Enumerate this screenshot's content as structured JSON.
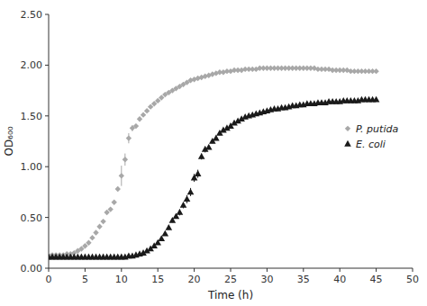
{
  "chart_data": {
    "type": "scatter",
    "xlabel": "Time (h)",
    "ylabel": "OD₆₀₀",
    "xlim": [
      0,
      50
    ],
    "ylim": [
      0,
      2.5
    ],
    "xticks": [
      0,
      5,
      10,
      15,
      20,
      25,
      30,
      35,
      40,
      45,
      50
    ],
    "yticks": [
      {
        "value": 0,
        "label": "0.00"
      },
      {
        "value": 0.5,
        "label": "0.50"
      },
      {
        "value": 1,
        "label": "1.00"
      },
      {
        "value": 1.5,
        "label": "1.50"
      },
      {
        "value": 2,
        "label": "2.00"
      },
      {
        "value": 2.5,
        "label": "2.50"
      }
    ],
    "grid": false,
    "legend": "right",
    "series": [
      {
        "name": "P. putida",
        "color": "#a8a8a8",
        "marker": "diamond",
        "x": [
          0.0,
          0.5,
          1.0,
          1.5,
          2.0,
          2.5,
          3.0,
          3.5,
          4.0,
          4.5,
          5.0,
          5.5,
          6.0,
          6.5,
          7.0,
          7.5,
          8.0,
          8.5,
          9.0,
          9.5,
          10.0,
          10.5,
          11.0,
          11.5,
          12.0,
          12.5,
          13.0,
          13.5,
          14.0,
          14.5,
          15.0,
          15.5,
          16.0,
          16.5,
          17.0,
          17.5,
          18.0,
          18.5,
          19.0,
          19.5,
          20.0,
          20.5,
          21.0,
          21.5,
          22.0,
          22.5,
          23.0,
          23.5,
          24.0,
          24.5,
          25.0,
          25.5,
          26.0,
          26.5,
          27.0,
          27.5,
          28.0,
          28.5,
          29.0,
          29.5,
          30.0,
          30.5,
          31.0,
          31.5,
          32.0,
          32.5,
          33.0,
          33.5,
          34.0,
          34.5,
          35.0,
          35.5,
          36.0,
          36.5,
          37.0,
          37.5,
          38.0,
          38.5,
          39.0,
          39.5,
          40.0,
          40.5,
          41.0,
          41.5,
          42.0,
          42.5,
          43.0,
          43.5,
          44.0,
          44.5,
          45.0
        ],
        "values": [
          0.13,
          0.13,
          0.13,
          0.13,
          0.13,
          0.14,
          0.14,
          0.15,
          0.17,
          0.19,
          0.22,
          0.25,
          0.3,
          0.35,
          0.41,
          0.46,
          0.55,
          0.58,
          0.65,
          0.78,
          0.91,
          1.07,
          1.28,
          1.38,
          1.4,
          1.47,
          1.51,
          1.55,
          1.59,
          1.62,
          1.65,
          1.68,
          1.71,
          1.73,
          1.75,
          1.77,
          1.79,
          1.81,
          1.83,
          1.85,
          1.86,
          1.87,
          1.88,
          1.89,
          1.9,
          1.91,
          1.92,
          1.93,
          1.93,
          1.94,
          1.94,
          1.95,
          1.95,
          1.95,
          1.96,
          1.96,
          1.96,
          1.96,
          1.97,
          1.97,
          1.97,
          1.97,
          1.97,
          1.97,
          1.97,
          1.97,
          1.97,
          1.97,
          1.97,
          1.97,
          1.97,
          1.97,
          1.97,
          1.97,
          1.96,
          1.96,
          1.96,
          1.96,
          1.95,
          1.95,
          1.95,
          1.95,
          1.95,
          1.94,
          1.94,
          1.94,
          1.94,
          1.94,
          1.94,
          1.94,
          1.94
        ],
        "errors": [
          0.005,
          0.005,
          0.005,
          0.005,
          0.005,
          0.005,
          0.005,
          0.005,
          0.005,
          0.005,
          0.005,
          0.005,
          0.005,
          0.005,
          0.005,
          0.005,
          0.01,
          0.01,
          0.01,
          0.02,
          0.1,
          0.06,
          0.05,
          0.03,
          0.02,
          0.02,
          0.02,
          0.01,
          0.01,
          0.01,
          0.01,
          0.01,
          0.01,
          0.01,
          0.01,
          0.01,
          0.01,
          0.01,
          0.01,
          0.01,
          0.01,
          0.01,
          0.01,
          0.01,
          0.01,
          0.01,
          0.01,
          0.01,
          0.01,
          0.01,
          0.01,
          0.01,
          0.01,
          0.01,
          0.01,
          0.01,
          0.01,
          0.01,
          0.01,
          0.01,
          0.01,
          0.01,
          0.01,
          0.01,
          0.01,
          0.01,
          0.01,
          0.01,
          0.01,
          0.01,
          0.01,
          0.01,
          0.01,
          0.01,
          0.01,
          0.01,
          0.01,
          0.01,
          0.01,
          0.01,
          0.01,
          0.01,
          0.01,
          0.01,
          0.01,
          0.01,
          0.01,
          0.01,
          0.01,
          0.01,
          0.01
        ]
      },
      {
        "name": "E. coli",
        "color": "#1a1a1a",
        "marker": "triangle",
        "x": [
          0.0,
          0.5,
          1.0,
          1.5,
          2.0,
          2.5,
          3.0,
          3.5,
          4.0,
          4.5,
          5.0,
          5.5,
          6.0,
          6.5,
          7.0,
          7.5,
          8.0,
          8.5,
          9.0,
          9.5,
          10.0,
          10.5,
          11.0,
          11.5,
          12.0,
          12.5,
          13.0,
          13.5,
          14.0,
          14.5,
          15.0,
          15.5,
          16.0,
          16.5,
          17.0,
          17.5,
          18.0,
          18.5,
          19.0,
          19.5,
          20.0,
          20.5,
          21.0,
          21.5,
          22.0,
          22.5,
          23.0,
          23.5,
          24.0,
          24.5,
          25.0,
          25.5,
          26.0,
          26.5,
          27.0,
          27.5,
          28.0,
          28.5,
          29.0,
          29.5,
          30.0,
          30.5,
          31.0,
          31.5,
          32.0,
          32.5,
          33.0,
          33.5,
          34.0,
          34.5,
          35.0,
          35.5,
          36.0,
          36.5,
          37.0,
          37.5,
          38.0,
          38.5,
          39.0,
          39.5,
          40.0,
          40.5,
          41.0,
          41.5,
          42.0,
          42.5,
          43.0,
          43.5,
          44.0,
          44.5,
          45.0
        ],
        "values": [
          0.11,
          0.11,
          0.11,
          0.11,
          0.11,
          0.11,
          0.11,
          0.11,
          0.11,
          0.11,
          0.11,
          0.11,
          0.11,
          0.11,
          0.11,
          0.11,
          0.11,
          0.11,
          0.11,
          0.11,
          0.11,
          0.11,
          0.12,
          0.12,
          0.13,
          0.14,
          0.15,
          0.17,
          0.19,
          0.22,
          0.25,
          0.29,
          0.34,
          0.4,
          0.47,
          0.51,
          0.55,
          0.62,
          0.68,
          0.75,
          0.89,
          0.93,
          1.1,
          1.17,
          1.19,
          1.25,
          1.28,
          1.33,
          1.36,
          1.38,
          1.4,
          1.43,
          1.45,
          1.47,
          1.49,
          1.5,
          1.51,
          1.52,
          1.53,
          1.54,
          1.55,
          1.56,
          1.57,
          1.57,
          1.58,
          1.58,
          1.59,
          1.6,
          1.6,
          1.61,
          1.61,
          1.62,
          1.62,
          1.62,
          1.63,
          1.63,
          1.63,
          1.64,
          1.64,
          1.64,
          1.64,
          1.65,
          1.65,
          1.65,
          1.65,
          1.65,
          1.66,
          1.66,
          1.66,
          1.66,
          1.66
        ],
        "errors": [
          0.004,
          0.004,
          0.004,
          0.004,
          0.004,
          0.004,
          0.004,
          0.004,
          0.004,
          0.004,
          0.004,
          0.004,
          0.004,
          0.004,
          0.004,
          0.004,
          0.004,
          0.004,
          0.004,
          0.004,
          0.004,
          0.004,
          0.004,
          0.004,
          0.004,
          0.004,
          0.005,
          0.006,
          0.007,
          0.008,
          0.01,
          0.01,
          0.01,
          0.02,
          0.02,
          0.02,
          0.03,
          0.03,
          0.04,
          0.04,
          0.04,
          0.04,
          0.03,
          0.03,
          0.02,
          0.02,
          0.02,
          0.02,
          0.01,
          0.01,
          0.01,
          0.01,
          0.01,
          0.01,
          0.01,
          0.01,
          0.01,
          0.01,
          0.01,
          0.01,
          0.01,
          0.01,
          0.01,
          0.01,
          0.01,
          0.01,
          0.01,
          0.01,
          0.01,
          0.01,
          0.01,
          0.01,
          0.01,
          0.01,
          0.01,
          0.01,
          0.01,
          0.01,
          0.01,
          0.01,
          0.01,
          0.01,
          0.01,
          0.01,
          0.01,
          0.01,
          0.01,
          0.01,
          0.01,
          0.01,
          0.01
        ]
      }
    ]
  }
}
